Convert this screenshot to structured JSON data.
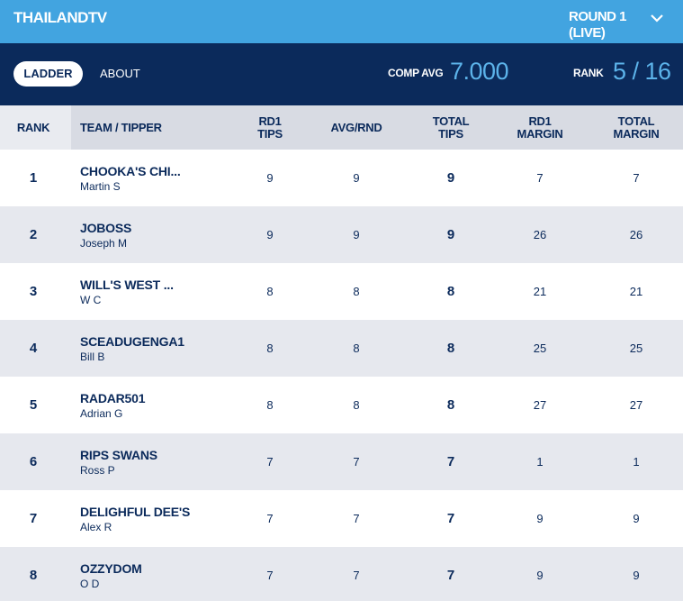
{
  "header": {
    "title": "THAILANDTV",
    "round": "ROUND 1\n(LIVE)"
  },
  "nav": {
    "tabs": [
      "LADDER",
      "ABOUT"
    ],
    "comp_avg_label": "COMP AVG",
    "comp_avg": "7.000",
    "rank_label": "RANK",
    "rank": "5 / 16"
  },
  "table": {
    "columns": [
      "RANK",
      "TEAM / TIPPER",
      "RD1\nTIPS",
      "AVG/RND",
      "TOTAL\nTIPS",
      "RD1\nMARGIN",
      "TOTAL\nMARGIN"
    ],
    "rows": [
      [
        1,
        "CHOOKA'S CHI...",
        "Martin S",
        9,
        9,
        9,
        7,
        7
      ],
      [
        2,
        "JOBOSS",
        "Joseph M",
        9,
        9,
        9,
        26,
        26
      ],
      [
        3,
        "WILL'S WEST ...",
        "W C",
        8,
        8,
        8,
        21,
        21
      ],
      [
        4,
        "SCEADUGENGA1",
        "Bill B",
        8,
        8,
        8,
        25,
        25
      ],
      [
        5,
        "RADAR501",
        "Adrian G",
        8,
        8,
        8,
        27,
        27
      ],
      [
        6,
        "RIPS SWANS",
        "Ross P",
        7,
        7,
        7,
        1,
        1
      ],
      [
        7,
        "DELIGHFUL DEE'S",
        "Alex R",
        7,
        7,
        7,
        9,
        9
      ],
      [
        8,
        "OZZYDOM",
        "O D",
        7,
        7,
        7,
        9,
        9
      ]
    ]
  }
}
